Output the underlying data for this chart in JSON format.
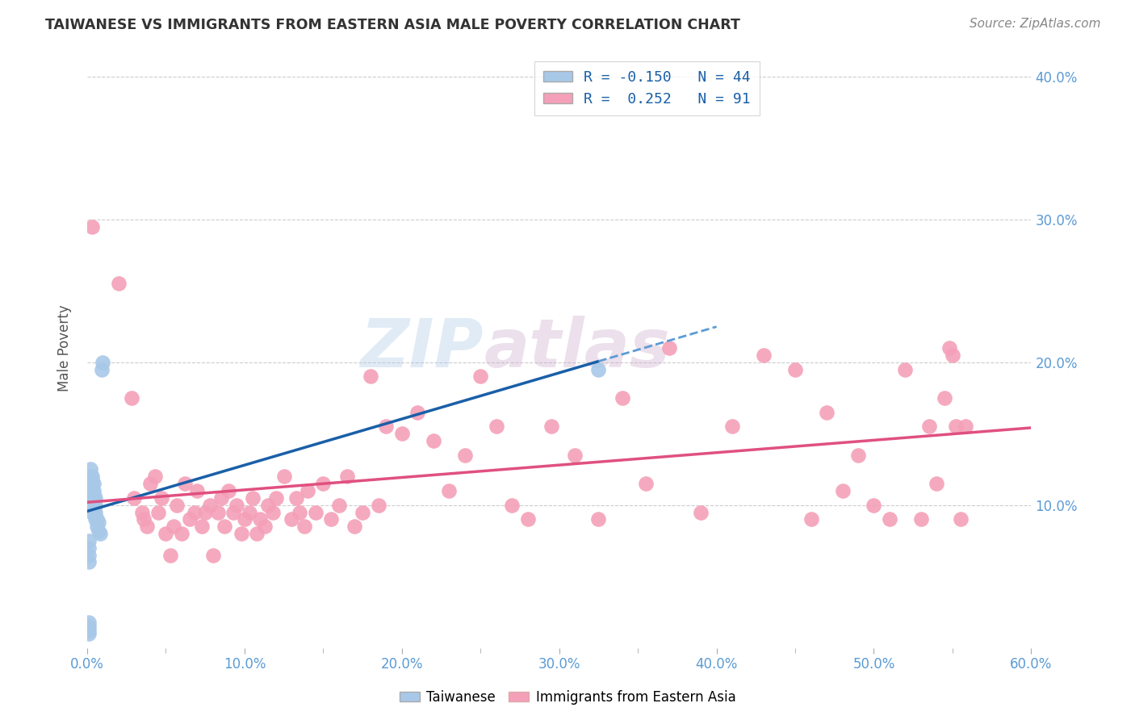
{
  "title": "TAIWANESE VS IMMIGRANTS FROM EASTERN ASIA MALE POVERTY CORRELATION CHART",
  "source": "Source: ZipAtlas.com",
  "ylabel": "Male Poverty",
  "xlim": [
    0.0,
    0.6
  ],
  "ylim": [
    0.0,
    0.42
  ],
  "xtick_labels": [
    "0.0%",
    "",
    "10.0%",
    "",
    "20.0%",
    "",
    "30.0%",
    "",
    "40.0%",
    "",
    "50.0%",
    "",
    "60.0%"
  ],
  "xtick_vals": [
    0.0,
    0.05,
    0.1,
    0.15,
    0.2,
    0.25,
    0.3,
    0.35,
    0.4,
    0.45,
    0.5,
    0.55,
    0.6
  ],
  "ytick_labels": [
    "10.0%",
    "20.0%",
    "30.0%",
    "40.0%"
  ],
  "ytick_vals": [
    0.1,
    0.2,
    0.3,
    0.4
  ],
  "taiwanese_color": "#a8c8e8",
  "immigrants_color": "#f4a0b8",
  "watermark_zip": "ZIP",
  "watermark_atlas": "atlas",
  "taiwanese_x": [
    0.001,
    0.001,
    0.001,
    0.001,
    0.001,
    0.001,
    0.001,
    0.001,
    0.002,
    0.002,
    0.002,
    0.002,
    0.002,
    0.002,
    0.002,
    0.002,
    0.002,
    0.003,
    0.003,
    0.003,
    0.003,
    0.003,
    0.003,
    0.003,
    0.003,
    0.003,
    0.004,
    0.004,
    0.004,
    0.004,
    0.004,
    0.004,
    0.005,
    0.005,
    0.005,
    0.005,
    0.006,
    0.006,
    0.007,
    0.007,
    0.008,
    0.009,
    0.01,
    0.325
  ],
  "taiwanese_y": [
    0.01,
    0.012,
    0.015,
    0.018,
    0.06,
    0.065,
    0.07,
    0.075,
    0.1,
    0.105,
    0.108,
    0.11,
    0.112,
    0.115,
    0.118,
    0.12,
    0.125,
    0.095,
    0.1,
    0.105,
    0.108,
    0.11,
    0.112,
    0.115,
    0.118,
    0.12,
    0.098,
    0.1,
    0.105,
    0.108,
    0.11,
    0.115,
    0.09,
    0.095,
    0.1,
    0.105,
    0.085,
    0.09,
    0.082,
    0.088,
    0.08,
    0.195,
    0.2,
    0.195
  ],
  "immigrants_x": [
    0.003,
    0.02,
    0.028,
    0.03,
    0.035,
    0.036,
    0.038,
    0.04,
    0.043,
    0.045,
    0.047,
    0.05,
    0.053,
    0.055,
    0.057,
    0.06,
    0.062,
    0.065,
    0.068,
    0.07,
    0.073,
    0.075,
    0.078,
    0.08,
    0.083,
    0.085,
    0.087,
    0.09,
    0.093,
    0.095,
    0.098,
    0.1,
    0.103,
    0.105,
    0.108,
    0.11,
    0.113,
    0.115,
    0.118,
    0.12,
    0.125,
    0.13,
    0.133,
    0.135,
    0.138,
    0.14,
    0.145,
    0.15,
    0.155,
    0.16,
    0.165,
    0.17,
    0.175,
    0.18,
    0.185,
    0.19,
    0.2,
    0.21,
    0.22,
    0.23,
    0.24,
    0.25,
    0.26,
    0.27,
    0.28,
    0.295,
    0.31,
    0.325,
    0.34,
    0.355,
    0.37,
    0.39,
    0.41,
    0.43,
    0.45,
    0.46,
    0.47,
    0.48,
    0.49,
    0.5,
    0.51,
    0.52,
    0.53,
    0.535,
    0.54,
    0.545,
    0.548,
    0.55,
    0.552,
    0.555,
    0.558
  ],
  "immigrants_y": [
    0.295,
    0.255,
    0.175,
    0.105,
    0.095,
    0.09,
    0.085,
    0.115,
    0.12,
    0.095,
    0.105,
    0.08,
    0.065,
    0.085,
    0.1,
    0.08,
    0.115,
    0.09,
    0.095,
    0.11,
    0.085,
    0.095,
    0.1,
    0.065,
    0.095,
    0.105,
    0.085,
    0.11,
    0.095,
    0.1,
    0.08,
    0.09,
    0.095,
    0.105,
    0.08,
    0.09,
    0.085,
    0.1,
    0.095,
    0.105,
    0.12,
    0.09,
    0.105,
    0.095,
    0.085,
    0.11,
    0.095,
    0.115,
    0.09,
    0.1,
    0.12,
    0.085,
    0.095,
    0.19,
    0.1,
    0.155,
    0.15,
    0.165,
    0.145,
    0.11,
    0.135,
    0.19,
    0.155,
    0.1,
    0.09,
    0.155,
    0.135,
    0.09,
    0.175,
    0.115,
    0.21,
    0.095,
    0.155,
    0.205,
    0.195,
    0.09,
    0.165,
    0.11,
    0.135,
    0.1,
    0.09,
    0.195,
    0.09,
    0.155,
    0.115,
    0.175,
    0.21,
    0.205,
    0.155,
    0.09,
    0.155
  ]
}
